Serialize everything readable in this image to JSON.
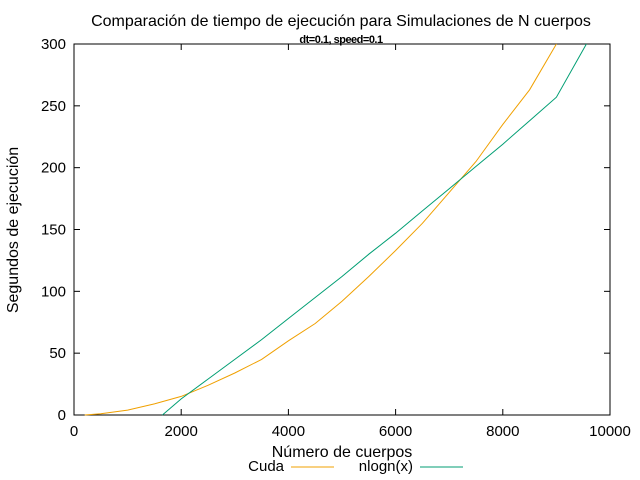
{
  "chart_data": {
    "type": "line",
    "title": "Comparación de tiempo de ejecución para Simulaciones de N cuerpos",
    "subtitle": "dt=0.1, speed=0.1",
    "xlabel": "Número de cuerpos",
    "ylabel": "Segundos de ejecución",
    "xlim": [
      0,
      10000
    ],
    "ylim": [
      0,
      300
    ],
    "xticks": [
      0,
      2000,
      4000,
      6000,
      8000,
      10000
    ],
    "yticks": [
      0,
      50,
      100,
      150,
      200,
      250,
      300
    ],
    "grid": false,
    "legend_position": "bottom-center",
    "series": [
      {
        "name": "Cuda",
        "color": "#f0a000",
        "x": [
          200,
          500,
          1000,
          1500,
          2000,
          2500,
          3000,
          3500,
          4000,
          4500,
          5000,
          5500,
          6000,
          6500,
          7000,
          7500,
          8000,
          8500,
          9000
        ],
        "y": [
          0,
          1,
          4,
          9,
          15,
          24,
          34,
          45,
          60,
          74,
          92,
          112,
          133,
          155,
          180,
          205,
          235,
          263,
          300
        ]
      },
      {
        "name": "nlogn(x)",
        "color": "#009e73",
        "x": [
          1650,
          2000,
          2500,
          3000,
          3500,
          4000,
          4500,
          5000,
          5500,
          6000,
          6500,
          7000,
          7500,
          8000,
          8500,
          9000,
          9560
        ],
        "y": [
          0,
          13,
          29,
          45,
          61,
          78,
          95,
          112,
          130,
          147,
          165,
          183,
          201,
          219,
          238,
          257,
          300
        ]
      }
    ]
  }
}
